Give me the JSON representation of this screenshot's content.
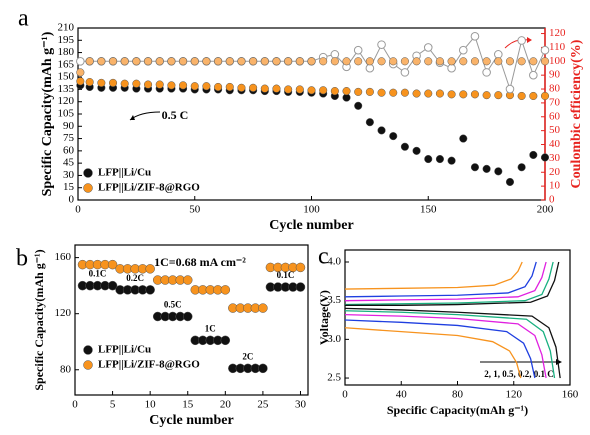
{
  "chart_data": [
    {
      "type": "scatter",
      "panel_label": "a",
      "xlabel": "Cycle number",
      "ylabel": "Specific Capacity(mAh g⁻¹)",
      "y2label": "Coulombic efficiency(%)",
      "y2color": "#e8231f",
      "annotation": "0.5 C",
      "legend": true,
      "xlim": [
        0,
        200
      ],
      "xticks": [
        0,
        50,
        100,
        150,
        200
      ],
      "ylim": [
        0,
        210
      ],
      "yticks": [
        0,
        15,
        30,
        45,
        60,
        75,
        90,
        105,
        120,
        135,
        150,
        165,
        180,
        195,
        210
      ],
      "y2lim": [
        0,
        124
      ],
      "y2ticks": [
        0,
        10,
        20,
        30,
        40,
        50,
        60,
        70,
        80,
        90,
        100,
        110,
        120
      ],
      "x": [
        1,
        5,
        10,
        15,
        20,
        25,
        30,
        35,
        40,
        45,
        50,
        55,
        60,
        65,
        70,
        75,
        80,
        85,
        90,
        95,
        100,
        105,
        110,
        115,
        120,
        125,
        130,
        135,
        140,
        145,
        150,
        155,
        160,
        165,
        170,
        175,
        180,
        185,
        190,
        195,
        200
      ],
      "series": [
        {
          "name": "LFP||Li/Cu",
          "color": "#111111",
          "values": [
            140,
            138,
            137,
            137,
            137,
            136,
            136,
            136,
            136,
            136,
            135,
            135,
            135,
            134,
            134,
            134,
            133,
            133,
            132,
            132,
            131,
            130,
            127,
            125,
            115,
            95,
            85,
            78,
            65,
            60,
            50,
            50,
            48,
            75,
            40,
            38,
            35,
            22,
            40,
            55,
            52
          ]
        },
        {
          "name": "LFP||Li/ZIF-8@RGO",
          "color": "#f7931e",
          "values": [
            145,
            144,
            143,
            143,
            142,
            142,
            141,
            141,
            140,
            140,
            139,
            139,
            138,
            138,
            137,
            137,
            136,
            136,
            135,
            135,
            134,
            134,
            133,
            133,
            132,
            132,
            131,
            131,
            131,
            130,
            130,
            130,
            129,
            129,
            129,
            128,
            128,
            128,
            127,
            127,
            127
          ]
        },
        {
          "color": "#9a9a9a",
          "hollow": true,
          "connect": true,
          "axis": "y2",
          "values": [
            100,
            100,
            100,
            100,
            100,
            100,
            100,
            100,
            100,
            100,
            100,
            100,
            100,
            100,
            100,
            100,
            100,
            100,
            100,
            100,
            100,
            103,
            105,
            96,
            108,
            95,
            112,
            98,
            92,
            104,
            110,
            99,
            95,
            108,
            118,
            92,
            105,
            80,
            115,
            90,
            108
          ]
        },
        {
          "color": "#f9b36a",
          "axis": "y2",
          "values": [
            92,
            100,
            100,
            100,
            100,
            100,
            100,
            100,
            100,
            100,
            100,
            100,
            100,
            100,
            100,
            100,
            100,
            100,
            100,
            100,
            100,
            100,
            100,
            100,
            100,
            100,
            100,
            100,
            100,
            100,
            100,
            100,
            100,
            100,
            100,
            100,
            100,
            100,
            100,
            100,
            100
          ]
        }
      ]
    },
    {
      "type": "scatter",
      "panel_label": "b",
      "xlabel": "Cycle number",
      "ylabel": "Specific Capacity(mAh g⁻¹)",
      "annotation": "1C=0.68 mA cm⁻²",
      "legend": true,
      "rate_labels": [
        "0.1C",
        "0.2C",
        "0.5C",
        "1C",
        "2C",
        "0.1C"
      ],
      "xlim": [
        0,
        31
      ],
      "xticks": [
        0,
        5,
        10,
        15,
        20,
        25,
        30
      ],
      "ylim": [
        62,
        169
      ],
      "yticks": [
        80,
        120,
        160
      ],
      "x": [
        1,
        2,
        3,
        4,
        5,
        6,
        7,
        8,
        9,
        10,
        11,
        12,
        13,
        14,
        15,
        16,
        17,
        18,
        19,
        20,
        21,
        22,
        23,
        24,
        25,
        26,
        27,
        28,
        29,
        30
      ],
      "series": [
        {
          "name": "LFP||Li/Cu",
          "color": "#111111",
          "values": [
            140,
            140,
            140,
            140,
            140,
            137,
            137,
            137,
            137,
            137,
            118,
            118,
            118,
            118,
            118,
            101,
            101,
            101,
            101,
            101,
            81,
            81,
            81,
            81,
            81,
            139,
            139,
            139,
            139,
            139
          ]
        },
        {
          "name": "LFP||Li/ZIF-8@RGO",
          "color": "#f7931e",
          "values": [
            155,
            155,
            155,
            155,
            155,
            152,
            152,
            152,
            152,
            152,
            144,
            144,
            144,
            144,
            144,
            137,
            137,
            137,
            137,
            137,
            124,
            124,
            124,
            124,
            124,
            153,
            153,
            153,
            153,
            153
          ]
        }
      ]
    },
    {
      "type": "line",
      "panel_label": "c",
      "xlabel": "Specific Capacity(mAh g⁻¹)",
      "ylabel": "Voltage(V)",
      "annotation": "2, 1, 0.5, 0.2, 0.1 C",
      "xlim": [
        0,
        160
      ],
      "xticks": [
        0,
        40,
        80,
        120,
        160
      ],
      "ylim": [
        2.41,
        4.155
      ],
      "yticks": [
        2.5,
        {
          "value": 3,
          "label": "3.0"
        },
        3.5,
        {
          "value": 4,
          "label": "4.0"
        }
      ],
      "series": [
        {
          "color": "#f7931e",
          "x": [
            0,
            40,
            80,
            105,
            117,
            122,
            125
          ],
          "values": [
            3.15,
            3.1,
            3.05,
            2.97,
            2.85,
            2.7,
            2.5
          ]
        },
        {
          "color": "#f7931e",
          "x": [
            0,
            40,
            80,
            106,
            118,
            123,
            126
          ],
          "values": [
            3.65,
            3.66,
            3.67,
            3.7,
            3.78,
            3.88,
            4.0
          ]
        },
        {
          "color": "#1f3fe0",
          "x": [
            0,
            40,
            80,
            115,
            127,
            132,
            135
          ],
          "values": [
            3.25,
            3.22,
            3.18,
            3.1,
            2.95,
            2.75,
            2.5
          ]
        },
        {
          "color": "#1f3fe0",
          "x": [
            0,
            40,
            80,
            116,
            128,
            133,
            136
          ],
          "values": [
            3.55,
            3.56,
            3.57,
            3.6,
            3.68,
            3.82,
            4.0
          ]
        },
        {
          "color": "#e020e0",
          "x": [
            0,
            40,
            80,
            123,
            135,
            140,
            143
          ],
          "values": [
            3.32,
            3.3,
            3.27,
            3.2,
            3.05,
            2.8,
            2.5
          ]
        },
        {
          "color": "#e020e0",
          "x": [
            0,
            40,
            80,
            123,
            135,
            140,
            143
          ],
          "values": [
            3.5,
            3.51,
            3.52,
            3.55,
            3.63,
            3.8,
            4.0
          ]
        },
        {
          "color": "#18b080",
          "x": [
            0,
            40,
            80,
            129,
            141,
            146,
            149
          ],
          "values": [
            3.37,
            3.35,
            3.32,
            3.26,
            3.1,
            2.85,
            2.5
          ]
        },
        {
          "color": "#18b080",
          "x": [
            0,
            40,
            80,
            128,
            140,
            145,
            148
          ],
          "values": [
            3.45,
            3.46,
            3.47,
            3.5,
            3.58,
            3.78,
            4.0
          ]
        },
        {
          "color": "#111111",
          "x": [
            0,
            40,
            80,
            133,
            145,
            150,
            153
          ],
          "values": [
            3.4,
            3.38,
            3.35,
            3.3,
            3.15,
            2.9,
            2.5
          ]
        },
        {
          "color": "#111111",
          "x": [
            0,
            40,
            80,
            132,
            144,
            149,
            152
          ],
          "values": [
            3.44,
            3.44,
            3.45,
            3.48,
            3.56,
            3.76,
            4.0
          ]
        }
      ]
    }
  ]
}
